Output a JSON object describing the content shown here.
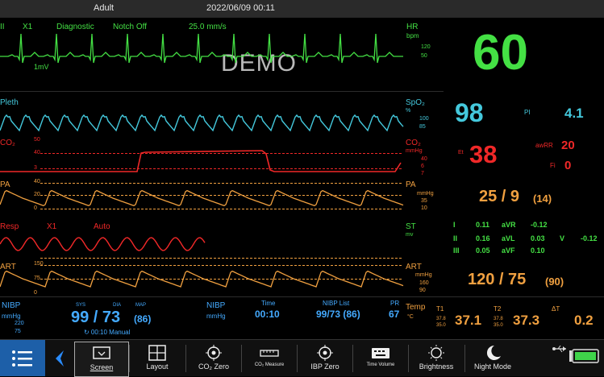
{
  "topbar": {
    "patient_type": "Adult",
    "datetime": "2022/06/09 00:11"
  },
  "ecg": {
    "lead": "II",
    "gain": "X1",
    "filter": "Diagnostic",
    "notch": "Notch Off",
    "speed": "25.0 mm/s",
    "scale": "1mV",
    "watermark": "DEMO",
    "hr_label": "HR",
    "hr_unit": "bpm",
    "hr_high": "120",
    "hr_low": "50",
    "hr_value": "60"
  },
  "pleth": {
    "label": "Pleth",
    "spo2_label": "SpO₂",
    "spo2_unit": "%",
    "spo2_high": "100",
    "spo2_low": "85",
    "spo2_value": "98",
    "pi_label": "PI",
    "pi_value": "4.1"
  },
  "co2": {
    "label": "CO₂",
    "scale_top": "50",
    "scale_mid": "40",
    "scale_low": "3",
    "unit_label": "CO₂",
    "unit": "mmHg",
    "high": "40",
    "mid": "6",
    "low": "7",
    "et_label": "Et",
    "et_value": "38",
    "awrr_label": "awRR",
    "awrr_value": "20",
    "fi_label": "Fi",
    "fi_value": "0"
  },
  "pa": {
    "label": "PA",
    "scale_top": "40",
    "scale_mid": "20",
    "scale_low": "0",
    "unit_label": "PA",
    "unit": "mmHg",
    "high": "35",
    "low": "10",
    "value": "25 / 9",
    "mean": "(14)"
  },
  "resp": {
    "label": "Resp",
    "gain": "X1",
    "mode": "Auto"
  },
  "st": {
    "label": "ST",
    "unit": "mv",
    "leads": [
      {
        "n": "I",
        "v": "0.11"
      },
      {
        "n": "aVR",
        "v": "-0.12"
      },
      {
        "n": "II",
        "v": "0.16"
      },
      {
        "n": "aVL",
        "v": "0.03"
      },
      {
        "n": "V",
        "v": "-0.12"
      },
      {
        "n": "III",
        "v": "0.05"
      },
      {
        "n": "aVF",
        "v": "0.10"
      }
    ]
  },
  "art": {
    "label": "ART",
    "scale_top": "150",
    "scale_mid": "75",
    "scale_low": "0",
    "unit_label": "ART",
    "unit": "mmHg",
    "high": "160",
    "low": "90",
    "value": "120 / 75",
    "mean": "(90)"
  },
  "nibp": {
    "label": "NIBP",
    "unit": "mmHg",
    "high": "220",
    "low": "75",
    "sys_label": "SYS",
    "dia_label": "DIA",
    "map_label": "MAP",
    "value": "99 / 73",
    "mean": "(86)",
    "time_info": "↻ 00:10  Manual"
  },
  "nibp2": {
    "label": "NIBP",
    "unit": "mmHg",
    "time_label": "Time",
    "time_value": "00:10",
    "list_label": "NIBP List",
    "list_value": "99/73 (86)",
    "pr_label": "PR",
    "pr_value": "67"
  },
  "temp": {
    "label": "Temp",
    "unit": "°C",
    "t1_label": "T1",
    "t1_high": "37.8",
    "t1_low": "35.0",
    "t1_value": "37.1",
    "t2_label": "T2",
    "t2_high": "37.8",
    "t2_low": "35.0",
    "t2_value": "37.3",
    "dt_label": "ΔT",
    "dt_value": "0.2"
  },
  "toolbar": {
    "screen": "Screen",
    "layout": "Layout",
    "co2_zero": "CO₂ Zero",
    "co2_standby": "CO₂ Measure",
    "ibp_zero": "IBP Zero",
    "time_volume": "Time Volume",
    "brightness": "Brightness",
    "night_mode": "Night Mode"
  },
  "colors": {
    "ecg": "#44e044",
    "spo2": "#44c8dc",
    "co2": "#f02828",
    "pa": "#f0a040",
    "art": "#f0a040",
    "nibp": "#44aaff"
  }
}
